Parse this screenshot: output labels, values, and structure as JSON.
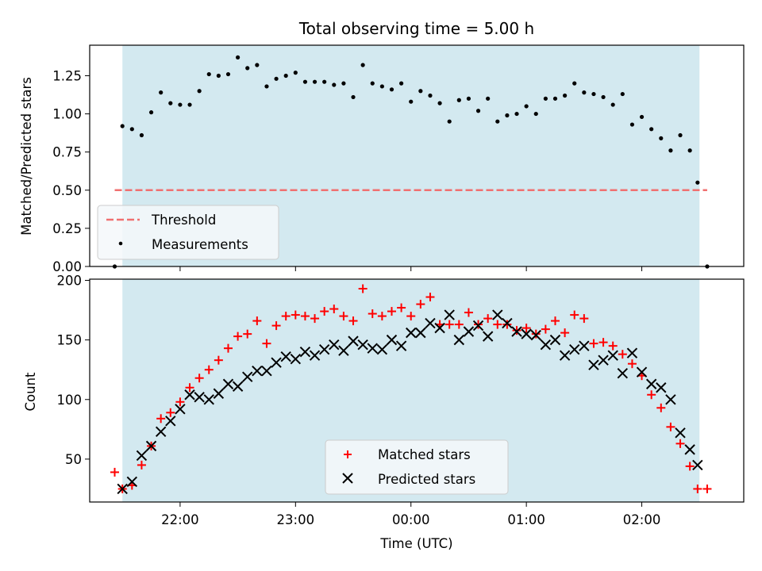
{
  "title": "Total observing time = 5.00 h",
  "chart_data": [
    {
      "type": "scatter",
      "ylabel": "Matched/Predicted stars",
      "ylim": [
        0,
        1.45
      ],
      "xlim": [
        "21:13",
        "02:53"
      ],
      "yticks": [
        "0.00",
        "0.25",
        "0.50",
        "0.75",
        "1.00",
        "1.25"
      ],
      "observing_window": [
        "21:30",
        "02:30"
      ],
      "window_color": "#d3e9f0",
      "threshold": {
        "name": "Threshold",
        "value": 0.5,
        "x_start": "21:26",
        "x_end": "02:34",
        "color": "#f07070"
      },
      "series": [
        {
          "name": "Measurements",
          "marker": "dot",
          "color": "#000000",
          "x": [
            "21:26",
            "21:30",
            "21:35",
            "21:40",
            "21:45",
            "21:50",
            "21:55",
            "22:00",
            "22:05",
            "22:10",
            "22:15",
            "22:20",
            "22:25",
            "22:30",
            "22:35",
            "22:40",
            "22:45",
            "22:50",
            "22:55",
            "23:00",
            "23:05",
            "23:10",
            "23:15",
            "23:20",
            "23:25",
            "23:30",
            "23:35",
            "23:40",
            "23:45",
            "23:50",
            "23:55",
            "00:00",
            "00:05",
            "00:10",
            "00:15",
            "00:20",
            "00:25",
            "00:30",
            "00:35",
            "00:40",
            "00:45",
            "00:50",
            "00:55",
            "01:00",
            "01:05",
            "01:10",
            "01:15",
            "01:20",
            "01:25",
            "01:30",
            "01:35",
            "01:40",
            "01:45",
            "01:50",
            "01:55",
            "02:00",
            "02:05",
            "02:10",
            "02:15",
            "02:20",
            "02:25",
            "02:29",
            "02:34"
          ],
          "y": [
            0.0,
            0.92,
            0.9,
            0.86,
            1.01,
            1.14,
            1.07,
            1.06,
            1.06,
            1.15,
            1.26,
            1.25,
            1.26,
            1.37,
            1.3,
            1.32,
            1.18,
            1.23,
            1.25,
            1.27,
            1.21,
            1.21,
            1.21,
            1.19,
            1.2,
            1.11,
            1.32,
            1.2,
            1.18,
            1.16,
            1.2,
            1.08,
            1.15,
            1.12,
            1.07,
            0.95,
            1.09,
            1.1,
            1.02,
            1.1,
            0.95,
            0.99,
            1.0,
            1.05,
            1.0,
            1.1,
            1.1,
            1.12,
            1.2,
            1.14,
            1.13,
            1.11,
            1.06,
            1.13,
            0.93,
            0.98,
            0.9,
            0.84,
            0.76,
            0.86,
            0.76,
            0.55,
            0.0
          ]
        }
      ]
    },
    {
      "type": "scatter",
      "ylabel": "Count",
      "xlabel": "Time (UTC)",
      "ylim": [
        14,
        201
      ],
      "xlim": [
        "21:13",
        "02:53"
      ],
      "yticks": [
        "50",
        "100",
        "150",
        "200"
      ],
      "xticks": [
        "22:00",
        "23:00",
        "00:00",
        "01:00",
        "02:00"
      ],
      "observing_window": [
        "21:30",
        "02:30"
      ],
      "window_color": "#d3e9f0",
      "series": [
        {
          "name": "Matched stars",
          "marker": "plus",
          "color": "#ff0000",
          "x": [
            "21:26",
            "21:30",
            "21:35",
            "21:40",
            "21:45",
            "21:50",
            "21:55",
            "22:00",
            "22:05",
            "22:10",
            "22:15",
            "22:20",
            "22:25",
            "22:30",
            "22:35",
            "22:40",
            "22:45",
            "22:50",
            "22:55",
            "23:00",
            "23:05",
            "23:10",
            "23:15",
            "23:20",
            "23:25",
            "23:30",
            "23:35",
            "23:40",
            "23:45",
            "23:50",
            "23:55",
            "00:00",
            "00:05",
            "00:10",
            "00:15",
            "00:20",
            "00:25",
            "00:30",
            "00:35",
            "00:40",
            "00:45",
            "00:50",
            "00:55",
            "01:00",
            "01:05",
            "01:10",
            "01:15",
            "01:20",
            "01:25",
            "01:30",
            "01:35",
            "01:40",
            "01:45",
            "01:50",
            "01:55",
            "02:00",
            "02:05",
            "02:10",
            "02:15",
            "02:20",
            "02:25",
            "02:29",
            "02:34"
          ],
          "y": [
            39,
            25,
            28,
            45,
            61,
            84,
            89,
            98,
            110,
            118,
            125,
            133,
            143,
            153,
            155,
            166,
            147,
            162,
            170,
            171,
            170,
            168,
            174,
            176,
            170,
            166,
            193,
            172,
            170,
            174,
            177,
            170,
            180,
            186,
            163,
            163,
            163,
            173,
            163,
            168,
            163,
            163,
            158,
            160,
            155,
            159,
            166,
            156,
            171,
            168,
            147,
            148,
            145,
            138,
            130,
            120,
            104,
            93,
            77,
            63,
            44,
            25,
            25
          ]
        },
        {
          "name": "Predicted stars",
          "marker": "x",
          "color": "#000000",
          "x": [
            "21:30",
            "21:35",
            "21:40",
            "21:45",
            "21:50",
            "21:55",
            "22:00",
            "22:05",
            "22:10",
            "22:15",
            "22:20",
            "22:25",
            "22:30",
            "22:35",
            "22:40",
            "22:45",
            "22:50",
            "22:55",
            "23:00",
            "23:05",
            "23:10",
            "23:15",
            "23:20",
            "23:25",
            "23:30",
            "23:35",
            "23:40",
            "23:45",
            "23:50",
            "23:55",
            "00:00",
            "00:05",
            "00:10",
            "00:15",
            "00:20",
            "00:25",
            "00:30",
            "00:35",
            "00:40",
            "00:45",
            "00:50",
            "00:55",
            "01:00",
            "01:05",
            "01:10",
            "01:15",
            "01:20",
            "01:25",
            "01:30",
            "01:35",
            "01:40",
            "01:45",
            "01:50",
            "01:55",
            "02:00",
            "02:05",
            "02:10",
            "02:15",
            "02:20",
            "02:25",
            "02:29"
          ],
          "y": [
            25,
            31,
            53,
            61,
            73,
            82,
            92,
            104,
            102,
            100,
            105,
            113,
            111,
            119,
            124,
            124,
            131,
            136,
            134,
            140,
            137,
            142,
            146,
            141,
            149,
            146,
            143,
            142,
            150,
            145,
            156,
            156,
            164,
            160,
            171,
            150,
            157,
            162,
            153,
            171,
            164,
            157,
            155,
            154,
            146,
            150,
            137,
            142,
            145,
            129,
            133,
            137,
            122,
            139,
            123,
            113,
            110,
            100,
            72,
            58,
            45
          ]
        }
      ]
    }
  ]
}
